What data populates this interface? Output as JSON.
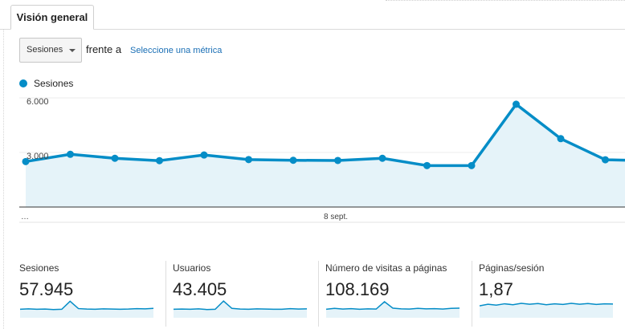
{
  "tabs": {
    "overview_label": "Visión general"
  },
  "controls": {
    "metric_select_value": "Sesiones",
    "compare_text": "frente a",
    "select_metric_link": "Seleccione una métrica"
  },
  "colors": {
    "accent": "#058dc7",
    "fill": "#e5f3f9",
    "link": "#1a6fb5"
  },
  "chart_data": {
    "type": "line",
    "series": [
      {
        "name": "Sesiones",
        "values": [
          2500,
          2900,
          2680,
          2550,
          2860,
          2610,
          2570,
          2560,
          2680,
          2280,
          2280,
          5650,
          3760,
          2600,
          2550
        ]
      }
    ],
    "x_tick_labels": [
      "…",
      "8 sept."
    ],
    "y_tick_labels": [
      "6.000",
      "3.000"
    ],
    "ylim": [
      0,
      6000
    ]
  },
  "summary": [
    {
      "title": "Sesiones",
      "value": "57.945",
      "spark": [
        3,
        3.2,
        3,
        3.1,
        2.9,
        3,
        6.5,
        3.3,
        3.1,
        3,
        3.2,
        3.1,
        3,
        3.1,
        3.3,
        3.2,
        3.4
      ]
    },
    {
      "title": "Usuarios",
      "value": "43.405",
      "spark": [
        3,
        3.1,
        3,
        3.2,
        2.9,
        3,
        6.6,
        3.4,
        3.1,
        3,
        3.2,
        3.1,
        3,
        3,
        3.3,
        3.1,
        3.2
      ]
    },
    {
      "title": "Número de visitas a páginas",
      "value": "108.169",
      "spark": [
        3,
        3.4,
        3.1,
        3.3,
        3,
        3.2,
        3.1,
        6.3,
        3.5,
        3.2,
        3.1,
        3.4,
        3.2,
        3.3,
        3.1,
        3.4,
        3.5
      ]
    },
    {
      "title": "Páginas/sesión",
      "value": "1,87",
      "spark": [
        4.5,
        5.2,
        4.8,
        5.4,
        5,
        5.6,
        5.2,
        5.5,
        5,
        5.4,
        5.1,
        5.6,
        5.2,
        5.5,
        5.1,
        5.4,
        5.3
      ]
    }
  ]
}
